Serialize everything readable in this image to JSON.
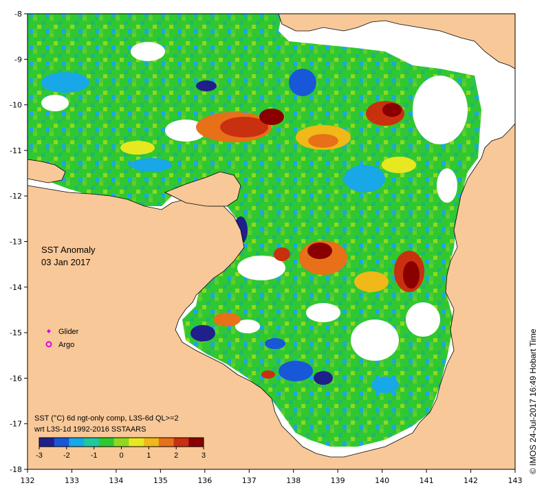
{
  "map": {
    "title": "SST Anomaly",
    "date": "03 Jan 2017",
    "legend": [
      {
        "label": "Glider",
        "color": "#e000e0",
        "symbol": "diamond"
      },
      {
        "label": "Argo",
        "color": "#e000e0",
        "symbol": "ring"
      }
    ],
    "note_line1": "SST (°C) 6d ngt-only comp, L3S-6d QL>=2",
    "note_line2": "wrt L3S-1d 1992-2016 SSTAARS",
    "colorbar": {
      "ticks": [
        "-3",
        "-2",
        "-1",
        "0",
        "1",
        "2",
        "3"
      ],
      "colors": [
        "#20208a",
        "#1858d8",
        "#18a8e8",
        "#20c8a0",
        "#30c830",
        "#90d820",
        "#e8e820",
        "#f0b818",
        "#e87018",
        "#c83010",
        "#8a0000"
      ]
    },
    "credit": "© IMOS 24-Jul-2017 16:49 Hobart Time",
    "x_ticks": [
      "132",
      "133",
      "134",
      "135",
      "136",
      "137",
      "138",
      "139",
      "140",
      "141",
      "142",
      "143"
    ],
    "y_ticks": [
      "-8",
      "-9",
      "-10",
      "-11",
      "-12",
      "-13",
      "-14",
      "-15",
      "-16",
      "-17",
      "-18"
    ],
    "land_color": "#f8c898",
    "nodata_color": "#ffffff"
  }
}
